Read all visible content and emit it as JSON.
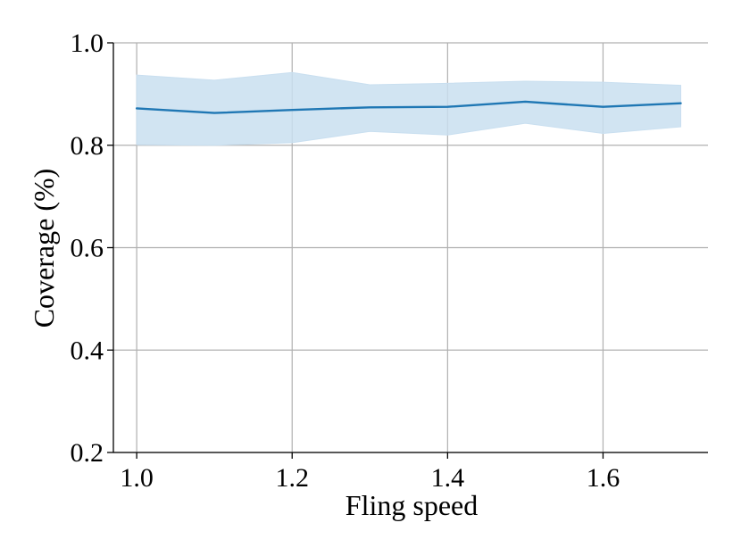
{
  "chart_data": {
    "type": "line",
    "xlabel": "Fling speed",
    "ylabel": "Coverage (%)",
    "xlim": [
      0.97,
      1.735
    ],
    "ylim": [
      0.2,
      1.0
    ],
    "xticks": [
      1.0,
      1.2,
      1.4,
      1.6
    ],
    "xtick_labels": [
      "1.0",
      "1.2",
      "1.4",
      "1.6"
    ],
    "yticks": [
      0.2,
      0.4,
      0.6,
      0.8,
      1.0
    ],
    "ytick_labels": [
      "0.2",
      "0.4",
      "0.6",
      "0.8",
      "1.0"
    ],
    "grid": true,
    "x": [
      1.0,
      1.1,
      1.2,
      1.3,
      1.4,
      1.5,
      1.6,
      1.7
    ],
    "series": [
      {
        "values": [
          0.872,
          0.863,
          0.869,
          0.874,
          0.875,
          0.885,
          0.875,
          0.882
        ],
        "band_upper": [
          0.937,
          0.927,
          0.942,
          0.918,
          0.921,
          0.925,
          0.923,
          0.917
        ],
        "band_lower": [
          0.801,
          0.8,
          0.805,
          0.827,
          0.82,
          0.843,
          0.823,
          0.836
        ],
        "color": "#1f77b4",
        "band_color": "#c9dff0"
      }
    ]
  }
}
